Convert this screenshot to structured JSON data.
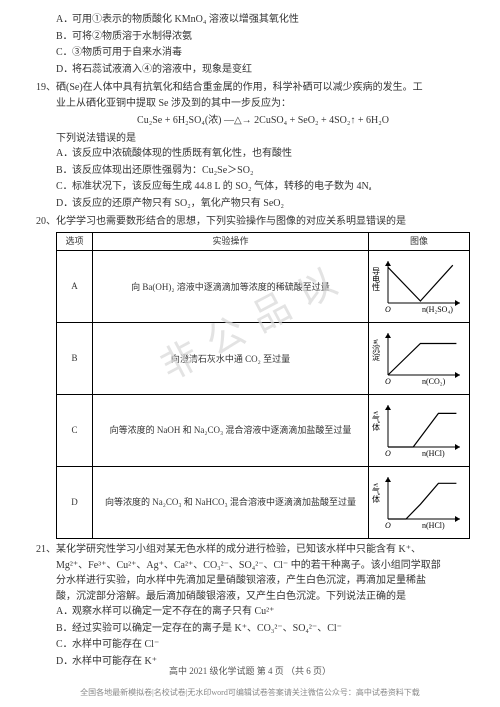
{
  "q18": {
    "A": "可用①表示的物质酸化 KMnO₄ 溶液以增强其氧化性",
    "B": "可将②物质溶于水制得浓氨",
    "C": "③物质可用于自来水消毒",
    "D": "将石蕊试液滴入④的溶液中，现象是变红"
  },
  "q19": {
    "num": "19、",
    "intro1": "硒(Se)在人体中具有抗氧化和结合重金属的作用，科学补硒可以减少疾病的发生。工",
    "intro2": "业上从硒化亚铜中提取 Se 涉及到的其中一步反应为：",
    "equation": "Cu₂Se + 6H₂SO₄(浓) —△→ 2CuSO₄ + SeO₂ + 4SO₂↑ + 6H₂O",
    "lead": "下列说法错误的是",
    "A": "该反应中浓硫酸体现的性质既有氧化性，也有酸性",
    "B": "该反应体现出还原性强弱为：Cu₂Se＞SO₂",
    "C": "标准状况下，该反应每生成 44.8 L 的 SO₂ 气体，转移的电子数为 4Nₐ",
    "D": "该反应的还原产物只有 SO₂，氧化产物只有 SeO₂"
  },
  "q20": {
    "num": "20、",
    "intro": "化学学习也需要数形结合的思想，下列实验操作与图像的对应关系明显错误的是",
    "head_opt": "选项",
    "head_op": "实验操作",
    "head_img": "图像",
    "rows": [
      {
        "label": "A",
        "op": "向 Ba(OH)₂ 溶液中逐滴滴加等浓度的稀硫酸至过量",
        "y": "导电性",
        "x": "n(H₂SO₄)",
        "shape": "valley"
      },
      {
        "label": "B",
        "op": "向澄清石灰水中通 CO₂ 至过量",
        "y": "w沉淀",
        "x": "n(CO₂)",
        "shape": "rise_flat"
      },
      {
        "label": "C",
        "op": "向等浓度的 NaOH 和 Na₂CO₃ 混合溶液中逐滴滴加盐酸至过量",
        "y": "v气体",
        "x": "n(HCl)",
        "shape": "delay_rise_flat"
      },
      {
        "label": "D",
        "op": "向等浓度的 Na₂CO₃ 和 NaHCO₃ 混合溶液中逐滴滴加盐酸至过量",
        "y": "v气体",
        "x": "n(HCl)",
        "shape": "two_segment_flat"
      }
    ],
    "chartStyle": {
      "stroke": "#000000",
      "strokeWidth": 1.2,
      "axisWidth": 1,
      "fontSize": 8,
      "width": 94,
      "height": 62,
      "bg": "#ffffff"
    }
  },
  "q21": {
    "num": "21、",
    "line1": "某化学研究性学习小组对某无色水样的成分进行检验，已知该水样中只能含有 K⁺、",
    "line2": "Mg²⁺、Fe³⁺、Cu²⁺、Ag⁺、Ca²⁺、CO₃²⁻、SO₄²⁻、Cl⁻ 中的若干种离子。该小组同学取部",
    "line3": "分水样进行实验，向水样中先滴加足量硝酸钡溶液，产生白色沉淀，再滴加足量稀盐",
    "line4": "酸，沉淀部分溶解。最后滴加硝酸银溶液，又产生白色沉淀。下列说法正确的是",
    "A": "观察水样可以确定一定不存在的离子只有 Cu²⁺",
    "B": "经过实验可以确定一定存在的离子是 K⁺、CO₃²⁻、SO₄²⁻、Cl⁻",
    "C": "水样中可能存在 Cl⁻",
    "D": "水样中可能存在 K⁺"
  },
  "footer_page": "高中 2021 级化学试题  第 4 页 （共 6 页）",
  "footer_note": "全国各地最新模拟卷|名校试卷|无水印word可编辑试卷答案请关注微信公众号：高中试卷资料下载",
  "watermark": "非 公 品 以"
}
